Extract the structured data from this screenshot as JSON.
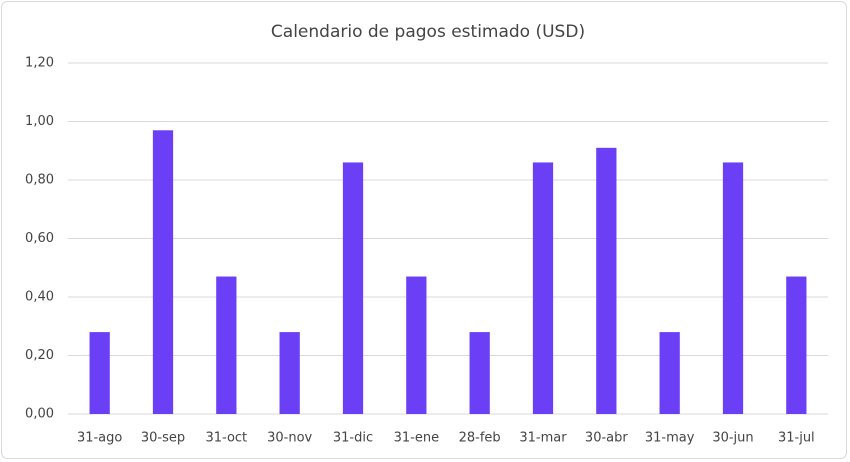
{
  "chart_data": {
    "type": "bar",
    "title": "Calendario de pagos estimado (USD)",
    "categories": [
      "31-ago",
      "30-sep",
      "31-oct",
      "30-nov",
      "31-dic",
      "31-ene",
      "28-feb",
      "31-mar",
      "30-abr",
      "31-may",
      "30-jun",
      "31-jul"
    ],
    "values": [
      0.28,
      0.97,
      0.47,
      0.28,
      0.86,
      0.47,
      0.28,
      0.86,
      0.91,
      0.28,
      0.86,
      0.47
    ],
    "color": "#6a3ff6",
    "ylim": [
      0,
      1.2
    ],
    "yticks": [
      {
        "value": 0,
        "label": "0,00"
      },
      {
        "value": 0.2,
        "label": "0,20"
      },
      {
        "value": 0.4,
        "label": "0,40"
      },
      {
        "value": 0.6,
        "label": "0,60"
      },
      {
        "value": 0.8,
        "label": "0,80"
      },
      {
        "value": 1.0,
        "label": "1,00"
      },
      {
        "value": 1.2,
        "label": "1,20"
      }
    ],
    "grid": true
  }
}
